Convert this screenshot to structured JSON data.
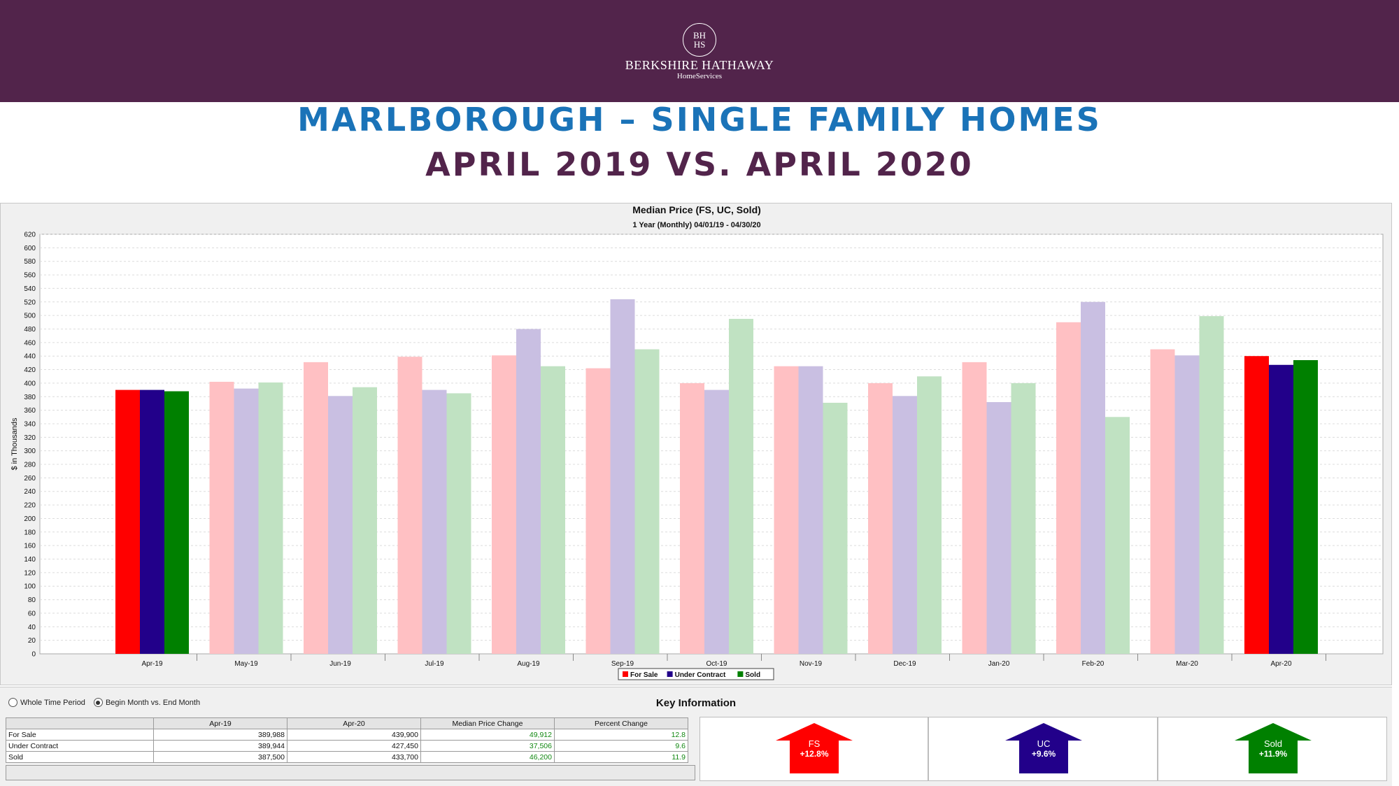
{
  "brand": {
    "logo_top": "BH",
    "logo_bottom": "HS",
    "name": "BERKSHIRE HATHAWAY",
    "sub": "HomeServices"
  },
  "headline": {
    "line1": "MARLBOROUGH – SINGLE FAMILY HOMES",
    "line2": "APRIL 2019 VS. APRIL 2020"
  },
  "colors": {
    "for_sale": "#ff0000",
    "under_contract": "#22008a",
    "sold": "#008000",
    "for_sale_faded": "#ffc0c3",
    "under_contract_faded": "#c9bfe2",
    "sold_faded": "#c0e2c2",
    "banner": "#52244b",
    "headline_blue": "#1a73b8"
  },
  "chart_data": {
    "type": "bar",
    "title": "Median Price (FS, UC, Sold)",
    "subtitle": "1 Year (Monthly) 04/01/19 - 04/30/20",
    "ylabel": "$ in Thousands",
    "xlabel": "",
    "ylim": [
      0,
      620
    ],
    "ytick_step": 20,
    "grid": true,
    "legend_placement": "bottom-center",
    "categories": [
      "Apr-19",
      "May-19",
      "Jun-19",
      "Jul-19",
      "Aug-19",
      "Sep-19",
      "Oct-19",
      "Nov-19",
      "Dec-19",
      "Jan-20",
      "Feb-20",
      "Mar-20",
      "Apr-20"
    ],
    "highlighted_categories": [
      "Apr-19",
      "Apr-20"
    ],
    "series": [
      {
        "name": "For Sale",
        "key": "for_sale",
        "values": [
          390,
          402,
          431,
          439,
          441,
          422,
          400,
          425,
          400,
          431,
          490,
          450,
          440
        ]
      },
      {
        "name": "Under Contract",
        "key": "under_contract",
        "values": [
          390,
          392,
          381,
          390,
          480,
          524,
          390,
          425,
          381,
          372,
          520,
          441,
          427
        ]
      },
      {
        "name": "Sold",
        "key": "sold",
        "values": [
          388,
          401,
          394,
          385,
          425,
          450,
          495,
          371,
          410,
          400,
          350,
          499,
          434
        ]
      }
    ]
  },
  "controls": {
    "radio_whole": "Whole Time Period",
    "radio_begin": "Begin Month vs. End Month",
    "key_title": "Key Information"
  },
  "table": {
    "headers": [
      "",
      "Apr-19",
      "Apr-20",
      "Median Price Change",
      "Percent Change"
    ],
    "rows": [
      {
        "label": "For Sale",
        "a": "389,988",
        "b": "439,900",
        "change": "49,912",
        "pct": "12.8"
      },
      {
        "label": "Under Contract",
        "a": "389,944",
        "b": "427,450",
        "change": "37,506",
        "pct": "9.6"
      },
      {
        "label": "Sold",
        "a": "387,500",
        "b": "433,700",
        "change": "46,200",
        "pct": "11.9"
      }
    ]
  },
  "key_cards": [
    {
      "label": "FS",
      "pct": "+12.8%",
      "color": "#ff0000"
    },
    {
      "label": "UC",
      "pct": "+9.6%",
      "color": "#22008a"
    },
    {
      "label": "Sold",
      "pct": "+11.9%",
      "color": "#008000"
    }
  ]
}
